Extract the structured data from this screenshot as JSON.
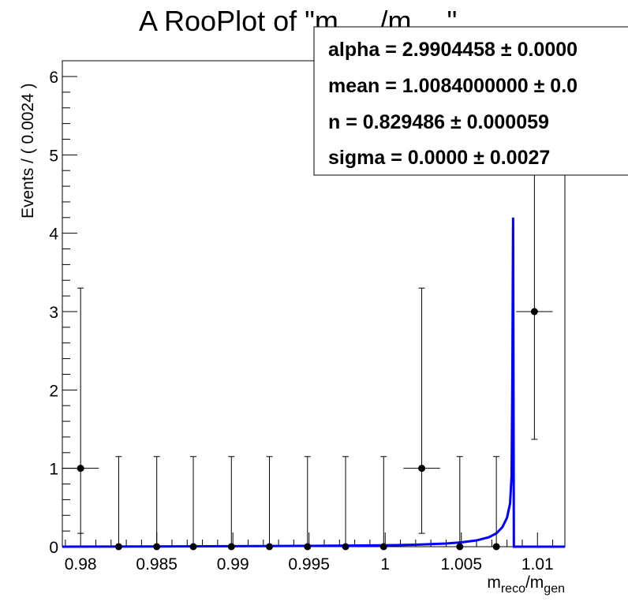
{
  "chart_data": {
    "type": "scatter",
    "title": {
      "prefix": "A RooPlot of \"m",
      "sub1": "reco",
      "mid": "/m",
      "sub2": "gen",
      "suffix": "\""
    },
    "xlabel": {
      "main1": "m",
      "sub1": "reco",
      "mid": "/m",
      "sub2": "gen"
    },
    "ylabel": "Events / ( 0.0024 )",
    "xlim": [
      0.9788,
      1.0118
    ],
    "ylim": [
      0,
      6.2
    ],
    "x_ticks": [
      0.98,
      0.985,
      0.99,
      0.995,
      1.0,
      1.005,
      1.01
    ],
    "x_tick_labels": [
      "0.98",
      "0.985",
      "0.99",
      "0.995",
      "1",
      "1.005",
      "1.01"
    ],
    "y_ticks": [
      0,
      1,
      2,
      3,
      4,
      5,
      6
    ],
    "y_tick_labels": [
      "0",
      "1",
      "2",
      "3",
      "4",
      "5",
      "6"
    ],
    "bin_half_width": 0.0012,
    "series": [
      {
        "kind": "points",
        "color": "#000000",
        "points": [
          {
            "x": 0.98,
            "y": 1,
            "lo": 0.83,
            "hi": 2.3
          },
          {
            "x": 0.9825,
            "y": 0,
            "lo": 0,
            "hi": 1.15
          },
          {
            "x": 0.985,
            "y": 0,
            "lo": 0,
            "hi": 1.15
          },
          {
            "x": 0.9874,
            "y": 0,
            "lo": 0,
            "hi": 1.15
          },
          {
            "x": 0.9899,
            "y": 0,
            "lo": 0,
            "hi": 1.15
          },
          {
            "x": 0.9924,
            "y": 0,
            "lo": 0,
            "hi": 1.15
          },
          {
            "x": 0.9949,
            "y": 0,
            "lo": 0,
            "hi": 1.15
          },
          {
            "x": 0.9974,
            "y": 0,
            "lo": 0,
            "hi": 1.15
          },
          {
            "x": 0.9999,
            "y": 0,
            "lo": 0,
            "hi": 1.15
          },
          {
            "x": 1.0024,
            "y": 1,
            "lo": 0.83,
            "hi": 2.3
          },
          {
            "x": 1.0049,
            "y": 0,
            "lo": 0,
            "hi": 1.15
          },
          {
            "x": 1.0073,
            "y": 0,
            "lo": 0,
            "hi": 1.15
          },
          {
            "x": 1.0098,
            "y": 3,
            "lo": 1.63,
            "hi": 2.92
          },
          {
            "x": 1.0123,
            "y": 0,
            "lo": 0,
            "hi": 1.15
          }
        ]
      },
      {
        "kind": "curve",
        "color": "#0000ff",
        "points": [
          [
            0.9788,
            0.0
          ],
          [
            0.985,
            0.003
          ],
          [
            0.99,
            0.006
          ],
          [
            0.995,
            0.01
          ],
          [
            1.0,
            0.018
          ],
          [
            1.002,
            0.025
          ],
          [
            1.004,
            0.04
          ],
          [
            1.005,
            0.055
          ],
          [
            1.006,
            0.08
          ],
          [
            1.0068,
            0.12
          ],
          [
            1.0073,
            0.17
          ],
          [
            1.0077,
            0.25
          ],
          [
            1.008,
            0.37
          ],
          [
            1.0082,
            0.55
          ],
          [
            1.0083,
            0.9
          ],
          [
            1.00835,
            2.1
          ],
          [
            1.0084,
            4.2
          ],
          [
            1.00845,
            0.0
          ],
          [
            1.0118,
            0.0
          ]
        ]
      }
    ]
  },
  "stats_box": {
    "lines": [
      "alpha =  2.9904458 ± 0.0000",
      "mean =  1.0084000000 ± 0.0",
      "n =  0.829486 ± 0.000059",
      "sigma =  0.0000 ± 0.0027"
    ]
  }
}
